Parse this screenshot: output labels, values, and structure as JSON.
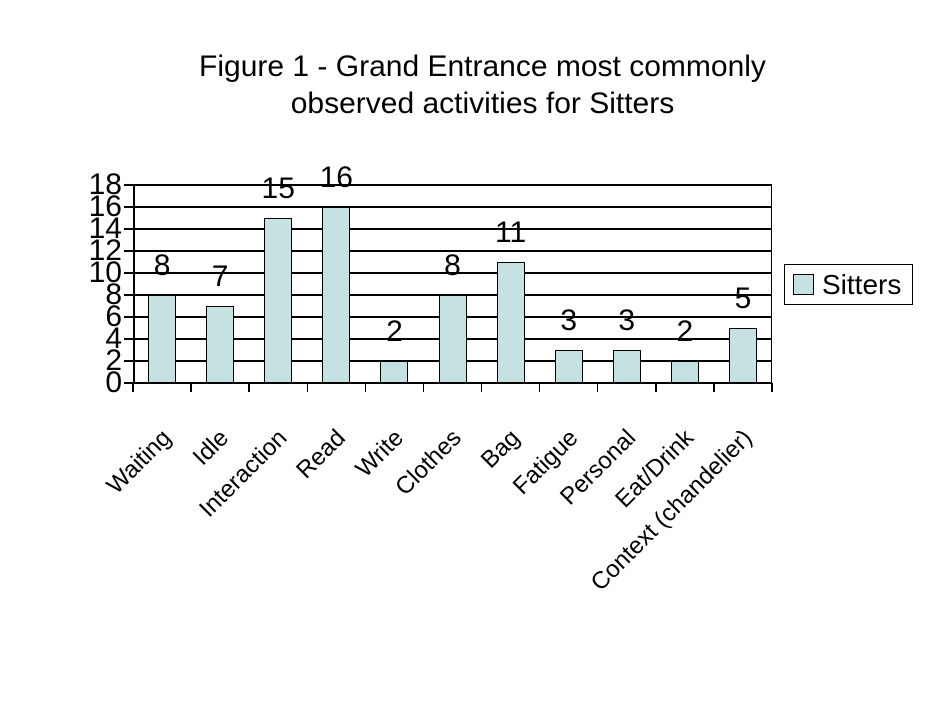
{
  "figure": {
    "title_line1": "Figure 1 - Grand Entrance most commonly",
    "title_line2": "observed activities for Sitters"
  },
  "legend": {
    "label": "Sitters"
  },
  "colors": {
    "bar_fill": "#C5E1E2",
    "bar_border": "#000000",
    "axis": "#000000",
    "background": "#FFFFFF",
    "text": "#000000"
  },
  "chart_data": {
    "type": "bar",
    "title": "Figure 1 - Grand Entrance most commonly observed activities for Sitters",
    "categories": [
      "Waiting",
      "Idle",
      "Interaction",
      "Read",
      "Write",
      "Clothes",
      "Bag",
      "Fatigue",
      "Personal",
      "Eat/Drink",
      "Context (chandelier)"
    ],
    "series": [
      {
        "name": "Sitters",
        "values": [
          8,
          7,
          15,
          16,
          2,
          8,
          11,
          3,
          3,
          2,
          5
        ]
      }
    ],
    "data_labels_shown": true,
    "xlabel": "",
    "ylabel": "",
    "ylim": [
      0,
      18
    ],
    "yticks": [
      0,
      2,
      4,
      6,
      8,
      10,
      12,
      14,
      16,
      18
    ],
    "grid": true,
    "legend_position": "right",
    "x_tick_label_rotation_deg": 45
  }
}
